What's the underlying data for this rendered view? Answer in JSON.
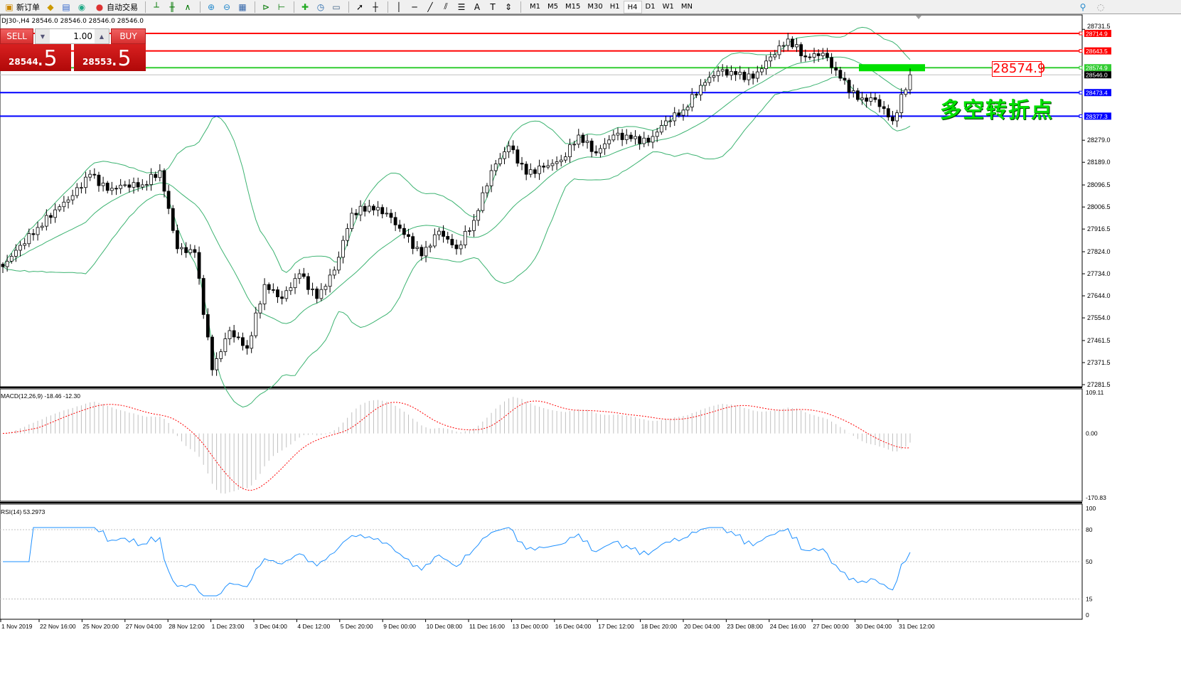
{
  "toolbar": {
    "new_order": "新订单",
    "auto_trading": "自动交易",
    "icons": [
      "new-order-icon",
      "market-watch-icon",
      "data-window-icon",
      "signals-icon",
      "auto-trading-icon",
      "bar-chart-icon",
      "candlestick-icon",
      "line-chart-icon",
      "zoom-in-icon",
      "zoom-out-icon",
      "tile-windows-icon",
      "autoscroll-icon",
      "chart-shift-icon",
      "indicators-icon",
      "periods-icon",
      "templates-icon",
      "cursor-icon",
      "crosshair-icon",
      "vertical-line-icon",
      "horizontal-line-icon",
      "trendline-icon",
      "equidistant-channel-icon",
      "fibonacci-icon",
      "text-icon",
      "text-label-icon",
      "arrows-icon"
    ],
    "periods": [
      "M1",
      "M5",
      "M15",
      "M30",
      "H1",
      "H4",
      "D1",
      "W1",
      "MN"
    ],
    "active_period": "H4"
  },
  "symbol_info": "DJ30-,H4  28546.0 28546.0 28546.0 28546.0",
  "one_click": {
    "sell_label": "SELL",
    "buy_label": "BUY",
    "lot": "1.00",
    "sell_price_small": "28544",
    "sell_price_large": ".5",
    "buy_price_small": "28553",
    "buy_price_large": ".5"
  },
  "annotations": {
    "callout": "28574.9",
    "pivot_text": "多空转折点",
    "zone_color": "#00e000"
  },
  "chart_data": [
    {
      "type": "candlestick",
      "symbol": "DJ30-",
      "timeframe": "H4",
      "ylim": [
        27281.5,
        28731.5
      ],
      "y_ticks": [
        "28731.5",
        "28279.0",
        "28189.0",
        "28096.5",
        "28006.5",
        "27916.5",
        "27824.0",
        "27734.0",
        "27644.0",
        "27554.0",
        "27461.5",
        "27371.5",
        "27281.5"
      ],
      "x_ticks": [
        "1 Nov 2019",
        "22 Nov 16:00",
        "25 Nov 20:00",
        "27 Nov 04:00",
        "28 Nov 12:00",
        "1 Dec 23:00",
        "3 Dec 04:00",
        "4 Dec 12:00",
        "5 Dec 20:00",
        "9 Dec 00:00",
        "10 Dec 08:00",
        "11 Dec 16:00",
        "13 Dec 00:00",
        "16 Dec 04:00",
        "17 Dec 12:00",
        "18 Dec 20:00",
        "20 Dec 04:00",
        "23 Dec 08:00",
        "24 Dec 16:00",
        "27 Dec 00:00",
        "30 Dec 04:00",
        "31 Dec 12:00"
      ],
      "close_keypoints": [
        27763,
        27850,
        27923,
        27995,
        28053,
        28140,
        28074,
        28097,
        28097,
        28155,
        27836,
        27821,
        27342,
        27502,
        27430,
        27690,
        27633,
        27734,
        27633,
        27749,
        27981,
        28010,
        27981,
        27894,
        27807,
        27908,
        27836,
        27952,
        28155,
        28256,
        28140,
        28169,
        28198,
        28300,
        28227,
        28300,
        28285,
        28271,
        28358,
        28402,
        28503,
        28561,
        28547,
        28532,
        28619,
        28692,
        28619,
        28634,
        28532,
        28445,
        28445,
        28358,
        28546
      ],
      "last_price": 28546.0,
      "horizontal_lines": [
        {
          "price": 28714.9,
          "label": "28714.9",
          "color": "#ff0000"
        },
        {
          "price": 28643.5,
          "label": "28643.5",
          "color": "#ff0000"
        },
        {
          "price": 28574.9,
          "label": "28574.9",
          "color": "#32cd32"
        },
        {
          "price": 28546.0,
          "label": "28546.0",
          "color": "#000000"
        },
        {
          "price": 28473.4,
          "label": "28473.4",
          "color": "#0000ff"
        },
        {
          "price": 28377.3,
          "label": "28377.3",
          "color": "#0000ff"
        }
      ],
      "indicator": "Bollinger Bands",
      "band_color": "#3cb371",
      "up_candle_color": "#ffffff",
      "down_candle_color": "#000000"
    },
    {
      "type": "bar",
      "title": "MACD(12,26,9) -18.46 -12.30",
      "y_ticks": [
        "109.11",
        "0.00",
        "-170.83"
      ],
      "ylim": [
        -170.83,
        109.11
      ],
      "histogram_color": "#c0c0c0",
      "signal_color": "#ff0000"
    },
    {
      "type": "line",
      "title": "RSI(14) 53.2973",
      "y_ticks": [
        "100",
        "80",
        "50",
        "15",
        "0"
      ],
      "ylim": [
        0,
        100
      ],
      "levels": [
        80,
        50,
        15
      ],
      "line_color": "#1e90ff"
    }
  ]
}
